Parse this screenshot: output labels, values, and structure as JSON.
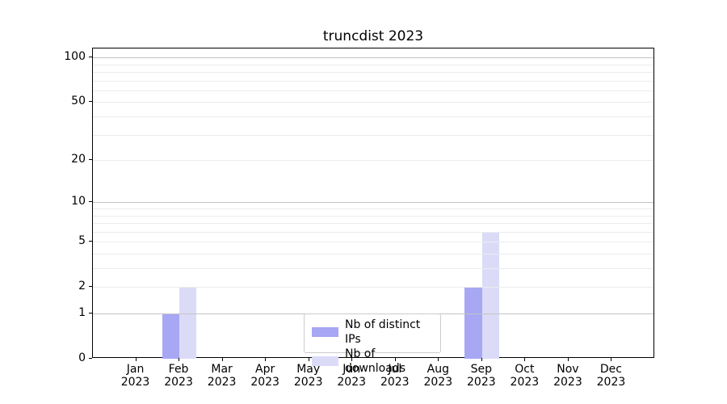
{
  "title": "truncdist 2023",
  "legend": {
    "items": [
      {
        "label": "Nb of distinct IPs",
        "color_key": "series1"
      },
      {
        "label": "Nb of downloads",
        "color_key": "series2"
      }
    ]
  },
  "colors": {
    "series1": "#a7a7f4",
    "series2": "#dbdbf8",
    "grid_major": "#c3c3c3",
    "grid_minor": "#ececec",
    "spine": "#000000",
    "text": "#000000",
    "legend_border": "#cccccc",
    "background": "#ffffff"
  },
  "chart_data": {
    "type": "bar",
    "title": "truncdist 2023",
    "categories": [
      {
        "month": "Jan",
        "year": "2023"
      },
      {
        "month": "Feb",
        "year": "2023"
      },
      {
        "month": "Mar",
        "year": "2023"
      },
      {
        "month": "Apr",
        "year": "2023"
      },
      {
        "month": "May",
        "year": "2023"
      },
      {
        "month": "Jun",
        "year": "2023"
      },
      {
        "month": "Jul",
        "year": "2023"
      },
      {
        "month": "Aug",
        "year": "2023"
      },
      {
        "month": "Sep",
        "year": "2023"
      },
      {
        "month": "Oct",
        "year": "2023"
      },
      {
        "month": "Nov",
        "year": "2023"
      },
      {
        "month": "Dec",
        "year": "2023"
      }
    ],
    "series": [
      {
        "name": "Nb of distinct IPs",
        "values": [
          0,
          1,
          0,
          0,
          0,
          0,
          0,
          0,
          2,
          0,
          0,
          0
        ]
      },
      {
        "name": "Nb of downloads",
        "values": [
          0,
          2,
          0,
          0,
          0,
          0,
          0,
          0,
          6,
          0,
          0,
          0
        ]
      }
    ],
    "yscale": "log1p",
    "ylim": [
      0,
      115
    ],
    "y_ticks": [
      0,
      1,
      2,
      5,
      10,
      20,
      50,
      100
    ],
    "y_gridlines_major": [
      1,
      10,
      100
    ],
    "y_gridlines_minor": [
      2,
      3,
      4,
      5,
      6,
      7,
      8,
      9,
      20,
      30,
      40,
      50,
      60,
      70,
      80,
      90
    ],
    "xlabel": "",
    "ylabel": "",
    "grid": true,
    "legend_position": "lower center (inside axes)"
  }
}
